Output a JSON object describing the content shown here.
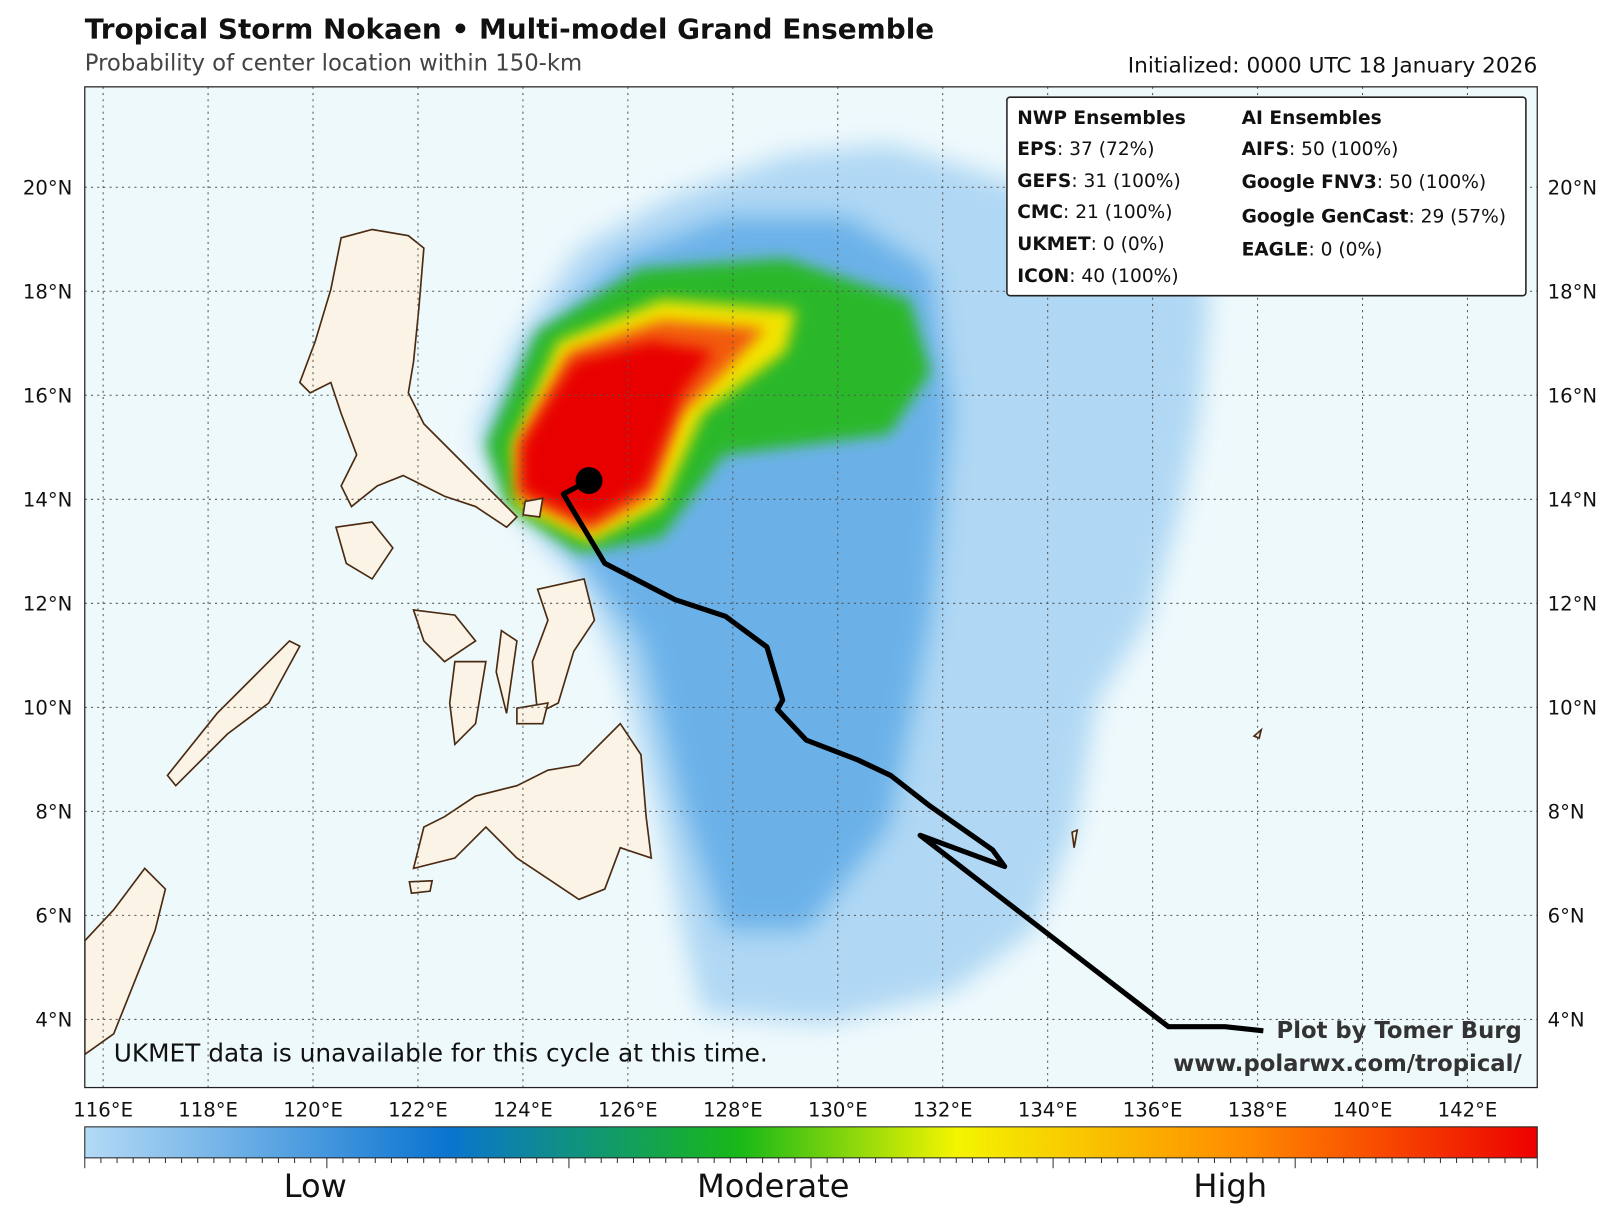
{
  "header": {
    "title": "Tropical Storm Nokaen • Multi-model Grand Ensemble",
    "subtitle": "Probability of center location within 150-km",
    "initialized": "Initialized: 0000 UTC 18 January 2026"
  },
  "map": {
    "xlim": [
      115.65,
      143.33
    ],
    "ylim": [
      2.69,
      21.93
    ],
    "xticks": [
      {
        "value": 116,
        "label": "116°E"
      },
      {
        "value": 118,
        "label": "118°E"
      },
      {
        "value": 120,
        "label": "120°E"
      },
      {
        "value": 122,
        "label": "122°E"
      },
      {
        "value": 124,
        "label": "124°E"
      },
      {
        "value": 126,
        "label": "126°E"
      },
      {
        "value": 128,
        "label": "128°E"
      },
      {
        "value": 130,
        "label": "130°E"
      },
      {
        "value": 132,
        "label": "132°E"
      },
      {
        "value": 134,
        "label": "134°E"
      },
      {
        "value": 136,
        "label": "136°E"
      },
      {
        "value": 138,
        "label": "138°E"
      },
      {
        "value": 140,
        "label": "140°E"
      },
      {
        "value": 142,
        "label": "142°E"
      }
    ],
    "yticks": [
      {
        "value": 4,
        "label": "4°N"
      },
      {
        "value": 6,
        "label": "6°N"
      },
      {
        "value": 8,
        "label": "8°N"
      },
      {
        "value": 10,
        "label": "10°N"
      },
      {
        "value": 12,
        "label": "12°N"
      },
      {
        "value": 14,
        "label": "14°N"
      },
      {
        "value": 16,
        "label": "16°N"
      },
      {
        "value": 18,
        "label": "18°N"
      },
      {
        "value": 20,
        "label": "20°N"
      }
    ],
    "grid": true,
    "track": {
      "lon": [
        125.26,
        124.77,
        125.56,
        126.9,
        127.86,
        128.65,
        128.95,
        128.85,
        129.4,
        130.38,
        131.01,
        131.76,
        132.95,
        133.18,
        131.57,
        134.82,
        136.3,
        137.38,
        138.11
      ],
      "lat": [
        14.36,
        14.1,
        12.77,
        12.07,
        11.75,
        11.16,
        10.14,
        9.96,
        9.37,
        8.99,
        8.69,
        8.1,
        7.26,
        6.94,
        7.54,
        5.01,
        3.86,
        3.86,
        3.78
      ]
    },
    "center": {
      "lon": 125.26,
      "lat": 14.36
    }
  },
  "legend": {
    "nwp": {
      "title": "NWP Ensembles",
      "items": [
        {
          "model": "EPS",
          "detail": ": 37 (72%)"
        },
        {
          "model": "GEFS",
          "detail": ": 31 (100%)"
        },
        {
          "model": "CMC",
          "detail": ": 21 (100%)"
        },
        {
          "model": "UKMET",
          "detail": ": 0 (0%)"
        },
        {
          "model": "ICON",
          "detail": ": 40 (100%)"
        }
      ]
    },
    "ai": {
      "title": "AI Ensembles",
      "items": [
        {
          "model": "AIFS",
          "detail": ": 50 (100%)"
        },
        {
          "model": "Google FNV3",
          "detail": ": 50 (100%)"
        },
        {
          "model": "Google GenCast",
          "detail": ": 29 (57%)"
        },
        {
          "model": "EAGLE",
          "detail": ": 0 (0%)"
        }
      ]
    }
  },
  "note": "UKMET data is unavailable for this cycle at this time.",
  "credit": {
    "author": "Plot by Tomer Burg",
    "url": "www.polarwx.com/tropical/"
  },
  "colorbar": {
    "labels": [
      "Low",
      "Moderate",
      "High"
    ]
  }
}
